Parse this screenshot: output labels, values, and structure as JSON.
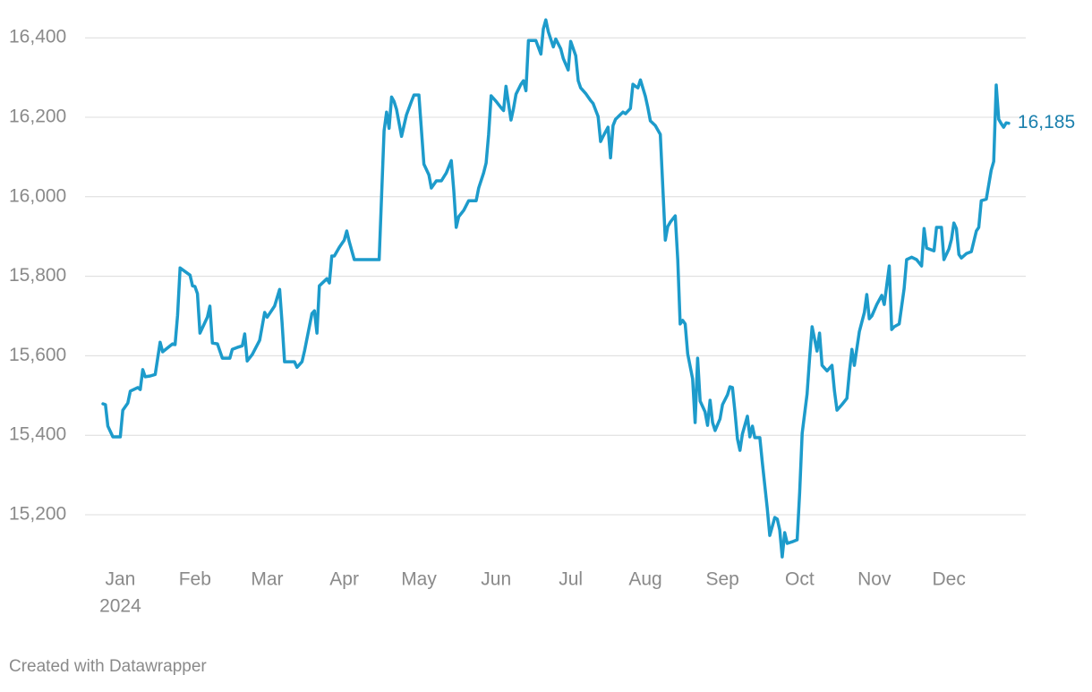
{
  "chart_data": {
    "type": "line",
    "color": "#1d9bcb",
    "label_color": "#1b80ad",
    "x": [
      2,
      3,
      4,
      6,
      9,
      10,
      12,
      13,
      16,
      17,
      18,
      19,
      21,
      23,
      25,
      26,
      30,
      31,
      32,
      33,
      37,
      38,
      39,
      40,
      41,
      44,
      45,
      46,
      48,
      50,
      53,
      54,
      56,
      58,
      59,
      60,
      62,
      65,
      67,
      68,
      71,
      73,
      74,
      75,
      79,
      80,
      82,
      83,
      86,
      87,
      88,
      89,
      92,
      93,
      94,
      95,
      97,
      99,
      100,
      101,
      103,
      113,
      115,
      116,
      117,
      118,
      119,
      120,
      122,
      124,
      126,
      127,
      129,
      131,
      133,
      134,
      136,
      138,
      140,
      142,
      143,
      144,
      145,
      147,
      149,
      152,
      153,
      155,
      156,
      157,
      158,
      160,
      162,
      163,
      164,
      165,
      166,
      167,
      168,
      170,
      171,
      172,
      173,
      176,
      178,
      179,
      180,
      181,
      183,
      184,
      186,
      187,
      189,
      190,
      192,
      193,
      194,
      196,
      198,
      199,
      201,
      202,
      203,
      205,
      206,
      207,
      208,
      211,
      212,
      214,
      215,
      216,
      217,
      218,
      220,
      221,
      222,
      224,
      226,
      228,
      229,
      230,
      232,
      233,
      234,
      235,
      236,
      237,
      239,
      240,
      241,
      242,
      244,
      245,
      246,
      247,
      248,
      250,
      251,
      253,
      254,
      255,
      256,
      257,
      258,
      259,
      261,
      262,
      263,
      264,
      266,
      267,
      269,
      270,
      272,
      273,
      274,
      275,
      276,
      277,
      279,
      281,
      282,
      283,
      285,
      286,
      287,
      289,
      290,
      291,
      293,
      295,
      296,
      297,
      299,
      301,
      302,
      303,
      304,
      306,
      308,
      309,
      310,
      311,
      313,
      315,
      316,
      318,
      319,
      320,
      322,
      324,
      325,
      327,
      329,
      331,
      332,
      333,
      336,
      337,
      339,
      340,
      342,
      343,
      344,
      345,
      346,
      347,
      349,
      351,
      353,
      354,
      355,
      357,
      359,
      360,
      361,
      362,
      363,
      364,
      365,
      366
    ],
    "values": [
      15479,
      15477,
      15423,
      15396,
      15396,
      15463,
      15481,
      15511,
      15520,
      15515,
      15565,
      15547,
      15549,
      15553,
      15634,
      15610,
      15630,
      15628,
      15702,
      15821,
      15803,
      15776,
      15774,
      15756,
      15657,
      15697,
      15725,
      15632,
      15630,
      15594,
      15594,
      15616,
      15621,
      15625,
      15655,
      15587,
      15603,
      15639,
      15709,
      15697,
      15725,
      15767,
      15684,
      15585,
      15585,
      15571,
      15585,
      15612,
      15706,
      15713,
      15657,
      15776,
      15794,
      15783,
      15851,
      15851,
      15873,
      15891,
      15914,
      15887,
      15842,
      15842,
      16166,
      16213,
      16172,
      16251,
      16240,
      16220,
      16152,
      16206,
      16240,
      16256,
      16256,
      16082,
      16055,
      16022,
      16040,
      16040,
      16060,
      16091,
      16015,
      15923,
      15950,
      15966,
      15990,
      15990,
      16022,
      16060,
      16085,
      16157,
      16254,
      16240,
      16224,
      16217,
      16278,
      16235,
      16193,
      16222,
      16258,
      16283,
      16292,
      16267,
      16393,
      16393,
      16359,
      16422,
      16445,
      16415,
      16377,
      16397,
      16372,
      16348,
      16319,
      16391,
      16355,
      16292,
      16274,
      16260,
      16242,
      16235,
      16202,
      16139,
      16152,
      16175,
      16098,
      16179,
      16195,
      16213,
      16209,
      16222,
      16283,
      16278,
      16274,
      16294,
      16253,
      16224,
      16191,
      16179,
      16157,
      15891,
      15925,
      15936,
      15952,
      15842,
      15680,
      15689,
      15680,
      15605,
      15542,
      15432,
      15594,
      15486,
      15459,
      15425,
      15488,
      15432,
      15412,
      15441,
      15477,
      15502,
      15522,
      15520,
      15459,
      15391,
      15362,
      15403,
      15448,
      15396,
      15423,
      15394,
      15394,
      15331,
      15216,
      15148,
      15193,
      15189,
      15162,
      15094,
      15155,
      15128,
      15132,
      15137,
      15256,
      15405,
      15504,
      15594,
      15673,
      15612,
      15657,
      15576,
      15562,
      15576,
      15511,
      15463,
      15477,
      15493,
      15560,
      15616,
      15576,
      15661,
      15709,
      15754,
      15693,
      15700,
      15729,
      15752,
      15729,
      15826,
      15666,
      15673,
      15680,
      15769,
      15842,
      15848,
      15842,
      15826,
      15920,
      15871,
      15864,
      15923,
      15923,
      15842,
      15869,
      15893,
      15934,
      15920,
      15855,
      15846,
      15857,
      15862,
      15914,
      15923,
      15990,
      15994,
      16067,
      16089,
      16281,
      16195,
      16184,
      16175,
      16186,
      16185
    ],
    "end_value_label": "16,185",
    "xlim": [
      1,
      366
    ],
    "xticks": [
      {
        "value": 9,
        "label": "Jan"
      },
      {
        "value": 39,
        "label": "Feb"
      },
      {
        "value": 68,
        "label": "Mar"
      },
      {
        "value": 99,
        "label": "Apr"
      },
      {
        "value": 129,
        "label": "May"
      },
      {
        "value": 160,
        "label": "Jun"
      },
      {
        "value": 190,
        "label": "Jul"
      },
      {
        "value": 220,
        "label": "Aug"
      },
      {
        "value": 251,
        "label": "Sep"
      },
      {
        "value": 282,
        "label": "Oct"
      },
      {
        "value": 312,
        "label": "Nov"
      },
      {
        "value": 342,
        "label": "Dec"
      }
    ],
    "x_sublabel": "2024",
    "ylim": [
      15100,
      16450
    ],
    "yticks": [
      {
        "value": 15200,
        "label": "15,200"
      },
      {
        "value": 15400,
        "label": "15,400"
      },
      {
        "value": 15600,
        "label": "15,600"
      },
      {
        "value": 15800,
        "label": "15,800"
      },
      {
        "value": 16000,
        "label": "16,000"
      },
      {
        "value": 16200,
        "label": "16,200"
      },
      {
        "value": 16400,
        "label": "16,400"
      }
    ],
    "grid": true
  },
  "credit": "Created with Datawrapper"
}
